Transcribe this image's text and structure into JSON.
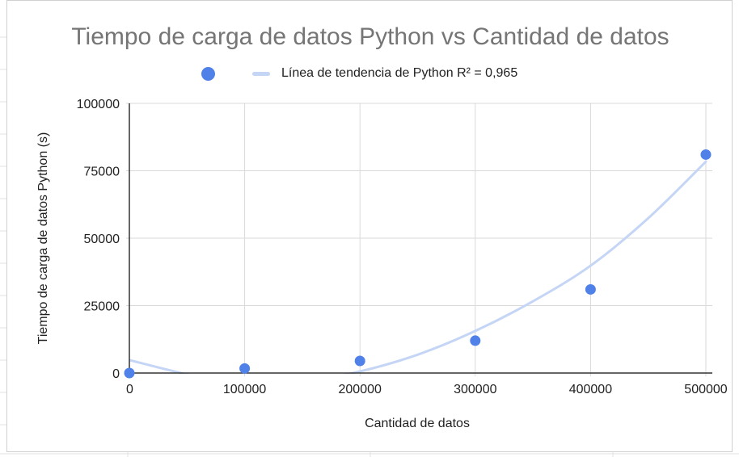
{
  "chart_data": {
    "type": "scatter",
    "title": "Tiempo de carga de datos Python vs Cantidad de datos",
    "xlabel": "Cantidad de datos",
    "ylabel": "Tiempo de carga de datos Python (s)",
    "xlim": [
      0,
      500000
    ],
    "ylim": [
      0,
      100000
    ],
    "x_ticks": [
      "0",
      "100000",
      "200000",
      "300000",
      "400000",
      "500000"
    ],
    "y_ticks": [
      "0",
      "25000",
      "50000",
      "75000",
      "100000"
    ],
    "grid": true,
    "legend_position": "top",
    "series": [
      {
        "color": "#4f81e8",
        "x": [
          0,
          100000,
          200000,
          300000,
          400000,
          500000
        ],
        "y": [
          0,
          1700,
          4500,
          12000,
          31000,
          81000
        ]
      }
    ],
    "trendline": {
      "name": "Línea de tendencia de Python R² = 0,965",
      "type": "polynomial",
      "color": "#c5d5f5",
      "x": [
        0,
        50000,
        100000,
        150000,
        200000,
        250000,
        300000,
        350000,
        400000,
        450000,
        500000
      ],
      "y": [
        4800,
        -500,
        -4600,
        -3200,
        600,
        6800,
        15600,
        26600,
        39800,
        57400,
        78400
      ]
    }
  }
}
